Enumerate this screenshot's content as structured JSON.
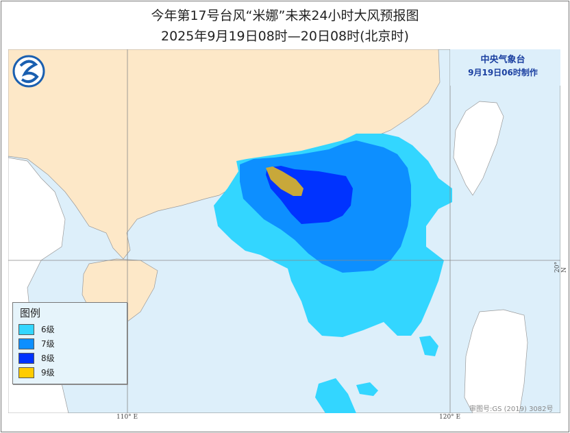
{
  "title": "今年第17号台风“米娜”未来24小时大风预报图",
  "subtitle": "2025年9月19日08时—20日08时(北京时)",
  "agency": {
    "name": "中央气象台",
    "issued": "9月19日06时制作"
  },
  "legend": {
    "title": "图例",
    "items": [
      {
        "label": "6级",
        "color": "#33d6ff"
      },
      {
        "label": "7级",
        "color": "#0d8fff"
      },
      {
        "label": "8级",
        "color": "#0033ff"
      },
      {
        "label": "9级",
        "color": "#ffcc00"
      }
    ]
  },
  "colors": {
    "sea": "#ddeffa",
    "land_china": "#fde8c8",
    "land_other": "#ffffff",
    "zone9_map": "#c8a83a"
  },
  "axes": {
    "lon": [
      "110° E",
      "120° E"
    ],
    "lat": [
      "20° N"
    ]
  },
  "approval": "审图号:GS (2019) 3082号",
  "logo": "cma-logo-icon"
}
